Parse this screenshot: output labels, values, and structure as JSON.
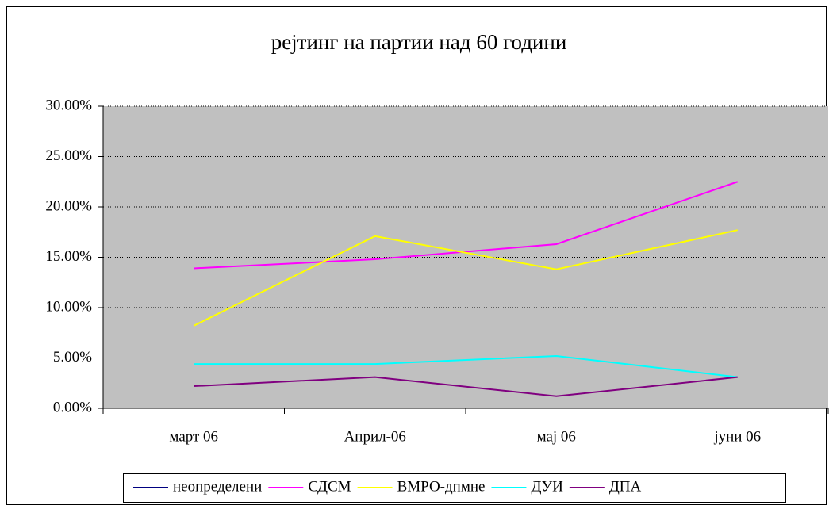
{
  "chart_data": {
    "type": "line",
    "title": "рејтинг на партии над 60 години",
    "categories": [
      "март 06",
      "Април-06",
      "мај 06",
      "јуни 06"
    ],
    "series": [
      {
        "name": "неопределени",
        "color": "#000080",
        "values": [
          null,
          null,
          null,
          null
        ]
      },
      {
        "name": "СДСМ",
        "color": "#ff00ff",
        "values": [
          13.9,
          14.8,
          16.3,
          22.5
        ]
      },
      {
        "name": "ВМРО-дпмне",
        "color": "#ffff00",
        "values": [
          8.2,
          17.1,
          13.8,
          17.7
        ]
      },
      {
        "name": "ДУИ",
        "color": "#00ffff",
        "values": [
          4.4,
          4.4,
          5.2,
          3.1
        ]
      },
      {
        "name": "ДПА",
        "color": "#800080",
        "values": [
          2.2,
          3.1,
          1.2,
          3.1
        ]
      }
    ],
    "ylim": [
      0,
      30
    ],
    "yticks": [
      {
        "value": 0,
        "label": "0.00%"
      },
      {
        "value": 5,
        "label": "5.00%"
      },
      {
        "value": 10,
        "label": "10.00%"
      },
      {
        "value": 15,
        "label": "15.00%"
      },
      {
        "value": 20,
        "label": "20.00%"
      },
      {
        "value": 25,
        "label": "25.00%"
      },
      {
        "value": 30,
        "label": "30.00%"
      }
    ],
    "grid": true,
    "legend": "bottom"
  }
}
